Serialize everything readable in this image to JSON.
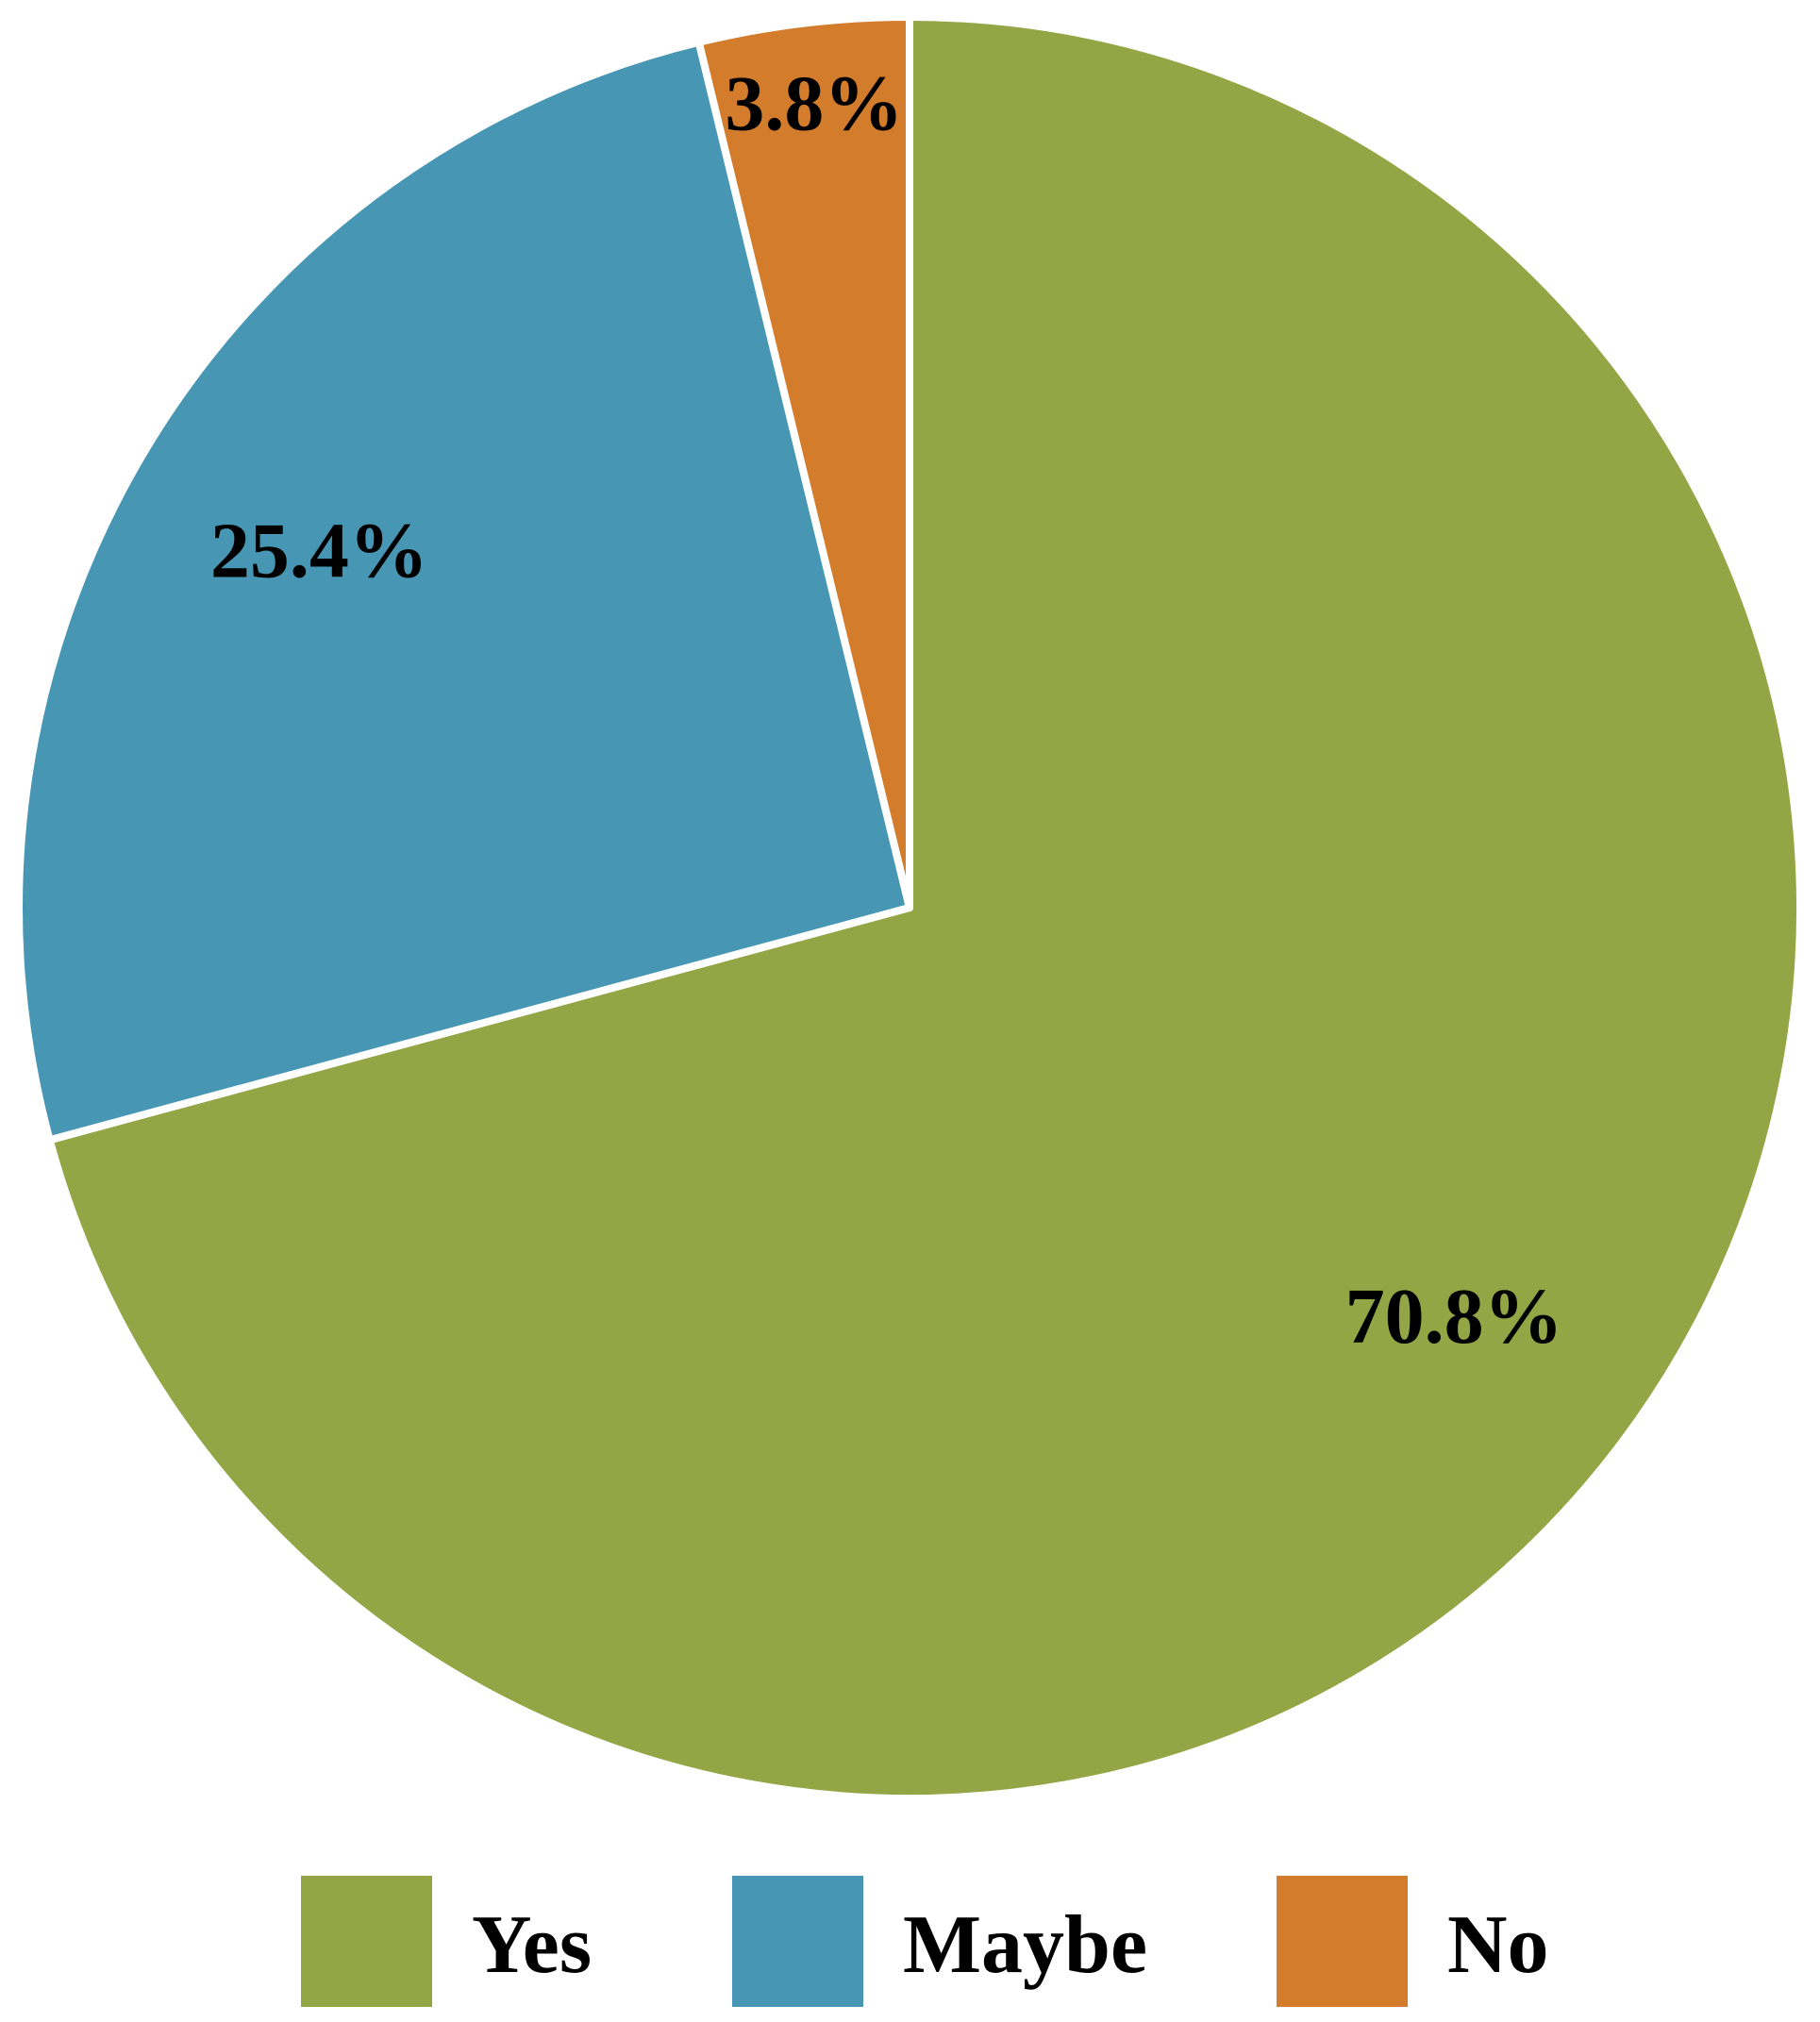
{
  "chart_data": {
    "type": "pie",
    "categories": [
      "Yes",
      "Maybe",
      "No"
    ],
    "values": [
      70.8,
      25.4,
      3.8
    ],
    "value_labels": [
      "70.8%",
      "25.4%",
      "3.8%"
    ],
    "colors": [
      "#94a545",
      "#4796b3",
      "#d27c2c"
    ],
    "legend": "bottom"
  }
}
